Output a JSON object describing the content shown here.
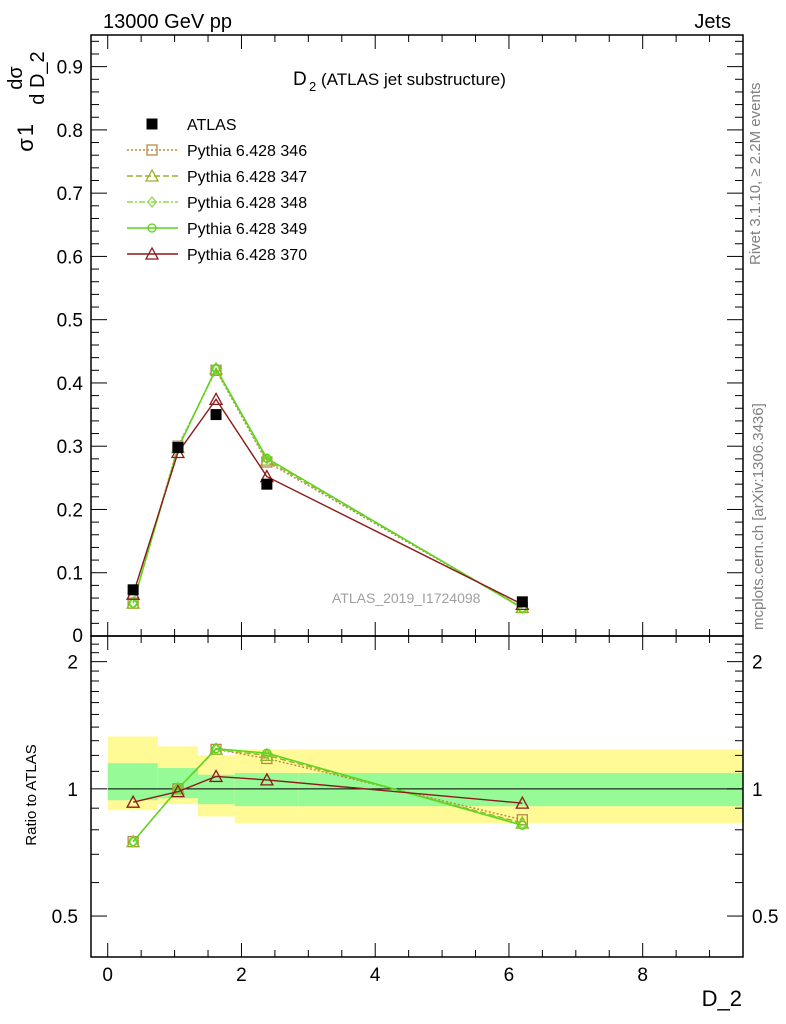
{
  "header": {
    "left": "13000 GeV pp",
    "right": "Jets"
  },
  "side_labels": {
    "rivet": "Rivet 3.1.10, ≥ 2.2M events",
    "mcplots": "mcplots.cern.ch [arXiv:1306.3436]"
  },
  "chart_data": {
    "type": "line",
    "title_main": "D",
    "title_sub": "2",
    "title_rest": " (ATLAS jet substructure)",
    "watermark": "ATLAS_2019_I1724098",
    "ylabel_top": {
      "frac1_num": "1",
      "frac1_den": "σ",
      "frac2_num": "dσ",
      "frac2_den": "d D_2"
    },
    "ylabel_ratio": "Ratio to ATLAS",
    "xlabel": "D_2",
    "xlim": [
      -0.25,
      9.5
    ],
    "ylim_main": [
      0,
      0.95
    ],
    "ylim_ratio_log": [
      0.4,
      2.3
    ],
    "x_ticks": [
      "0",
      "2",
      "4",
      "6",
      "8"
    ],
    "x_tick_values": [
      0,
      2,
      4,
      6,
      8
    ],
    "y_ticks_main": [
      "0.1",
      "0.2",
      "0.3",
      "0.4",
      "0.5",
      "0.6",
      "0.7",
      "0.8",
      "0.9"
    ],
    "y_tick_values_main": [
      0.1,
      0.2,
      0.3,
      0.4,
      0.5,
      0.6,
      0.7,
      0.8,
      0.9
    ],
    "y_zero_label": "0",
    "y_ticks_ratio": [
      "0.5",
      "1",
      "2"
    ],
    "y_tick_values_ratio": [
      0.5,
      1,
      2
    ],
    "x": [
      0.38,
      1.05,
      1.62,
      2.38,
      6.2
    ],
    "bin_edges": [
      0,
      0.75,
      1.35,
      1.9,
      2.85,
      9.5
    ],
    "data": {
      "name": "ATLAS",
      "values": [
        0.073,
        0.298,
        0.35,
        0.24,
        0.054
      ],
      "band_stat": [
        [
          0.94,
          1.15
        ],
        [
          0.95,
          1.12
        ],
        [
          0.92,
          1.08
        ],
        [
          0.91,
          1.09
        ],
        [
          0.91,
          1.09
        ]
      ],
      "band_total": [
        [
          0.89,
          1.33
        ],
        [
          0.92,
          1.26
        ],
        [
          0.86,
          1.2
        ],
        [
          0.83,
          1.24
        ],
        [
          0.83,
          1.24
        ]
      ]
    },
    "series": [
      {
        "name": "Pythia 6.428 346",
        "color": "#b8884a",
        "dash": "2,2",
        "marker": "square",
        "values": [
          0.052,
          0.3,
          0.42,
          0.275,
          0.045
        ],
        "ratio": [
          0.75,
          1.0,
          1.24,
          1.18,
          0.845
        ]
      },
      {
        "name": "Pythia 6.428 347",
        "color": "#9ab028",
        "dash": "6,3",
        "marker": "triangle",
        "values": [
          0.052,
          0.298,
          0.422,
          0.278,
          0.045
        ],
        "ratio": [
          0.75,
          1.0,
          1.24,
          1.2,
          0.83
        ]
      },
      {
        "name": "Pythia 6.428 348",
        "color": "#8fd84a",
        "dash": "6,2,2,2",
        "marker": "diamond",
        "values": [
          0.052,
          0.297,
          0.422,
          0.28,
          0.044
        ],
        "ratio": [
          0.75,
          1.0,
          1.24,
          1.21,
          0.825
        ]
      },
      {
        "name": "Pythia 6.428 349",
        "color": "#5ad61a",
        "dash": "",
        "marker": "circle",
        "values": [
          0.052,
          0.296,
          0.423,
          0.281,
          0.044
        ],
        "ratio": [
          0.75,
          1.0,
          1.245,
          1.215,
          0.82
        ]
      },
      {
        "name": "Pythia 6.428 370",
        "color": "#8b1a1a",
        "dash": "",
        "marker": "triangle",
        "values": [
          0.066,
          0.29,
          0.374,
          0.252,
          0.05
        ],
        "ratio": [
          0.93,
          0.985,
          1.07,
          1.05,
          0.925
        ]
      }
    ],
    "colors": {
      "band_total": "#fffa96",
      "band_stat": "#96fa96",
      "data_marker": "#000000"
    }
  }
}
